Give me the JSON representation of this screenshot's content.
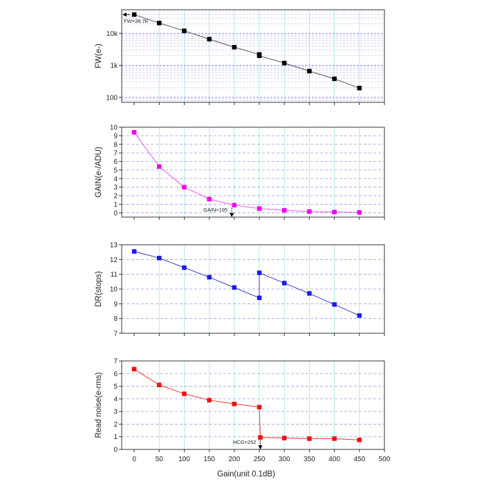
{
  "x_axis": {
    "label": "Gain(unit 0.1dB)",
    "ticks": [
      0,
      50,
      100,
      150,
      200,
      250,
      300,
      350,
      400,
      450,
      500
    ],
    "range": [
      -25,
      500
    ]
  },
  "chart_data": [
    {
      "type": "scatter",
      "scale": "log",
      "ylabel": "FW(e-)",
      "ylim": [
        70,
        55000
      ],
      "yticks": [
        {
          "v": 100,
          "t": "100"
        },
        {
          "v": 1000,
          "t": "1k"
        },
        {
          "v": 10000,
          "t": "10k"
        }
      ],
      "color": "#000000",
      "line_color": "#555555",
      "x": [
        0,
        50,
        100,
        150,
        200,
        250,
        250,
        300,
        350,
        400,
        450
      ],
      "values": [
        38700,
        21000,
        12000,
        6600,
        3700,
        2200,
        2000,
        1180,
        660,
        380,
        195
      ],
      "annotation": {
        "text": "FW=38.7K",
        "x": 0,
        "y": 38700
      }
    },
    {
      "type": "scatter",
      "scale": "linear",
      "ylabel": "GAIN(e-/ADU)",
      "ylim": [
        -0.5,
        10
      ],
      "yticks": [
        {
          "v": 0,
          "t": "0"
        },
        {
          "v": 1,
          "t": "1"
        },
        {
          "v": 2,
          "t": "2"
        },
        {
          "v": 3,
          "t": "3"
        },
        {
          "v": 4,
          "t": "4"
        },
        {
          "v": 5,
          "t": "5"
        },
        {
          "v": 6,
          "t": "6"
        },
        {
          "v": 7,
          "t": "7"
        },
        {
          "v": 8,
          "t": "8"
        },
        {
          "v": 9,
          "t": "9"
        },
        {
          "v": 10,
          "t": "10"
        }
      ],
      "color": "#ee00ee",
      "line_color": "#ee55ee",
      "x": [
        0,
        50,
        100,
        150,
        200,
        250,
        300,
        350,
        400,
        450
      ],
      "values": [
        9.4,
        5.4,
        3.0,
        1.6,
        0.9,
        0.5,
        0.3,
        0.15,
        0.1,
        0.05
      ],
      "annotation": {
        "text": "GAIN=195",
        "x": 195,
        "y": 0.9
      }
    },
    {
      "type": "line",
      "scale": "linear",
      "ylabel": "DR(stops)",
      "ylim": [
        7,
        13
      ],
      "yticks": [
        {
          "v": 7,
          "t": "7"
        },
        {
          "v": 8,
          "t": "8"
        },
        {
          "v": 9,
          "t": "9"
        },
        {
          "v": 10,
          "t": "10"
        },
        {
          "v": 11,
          "t": "11"
        },
        {
          "v": 12,
          "t": "12"
        },
        {
          "v": 13,
          "t": "13"
        }
      ],
      "color": "#1a1aee",
      "line_color": "#3333cc",
      "x": [
        0,
        50,
        100,
        150,
        200,
        250,
        250,
        300,
        350,
        400,
        450
      ],
      "values": [
        12.55,
        12.1,
        11.45,
        10.8,
        10.1,
        9.4,
        11.1,
        10.4,
        9.7,
        8.95,
        8.2
      ]
    },
    {
      "type": "line",
      "scale": "linear",
      "ylabel": "Read noise(e-rms)",
      "ylim": [
        0,
        7
      ],
      "yticks": [
        {
          "v": 0,
          "t": "0"
        },
        {
          "v": 1,
          "t": "1"
        },
        {
          "v": 2,
          "t": "2"
        },
        {
          "v": 3,
          "t": "3"
        },
        {
          "v": 4,
          "t": "4"
        },
        {
          "v": 5,
          "t": "5"
        },
        {
          "v": 6,
          "t": "6"
        },
        {
          "v": 7,
          "t": "7"
        }
      ],
      "color": "#ee1111",
      "line_color": "#ee3333",
      "x": [
        0,
        50,
        100,
        150,
        200,
        250,
        252,
        300,
        350,
        400,
        450
      ],
      "values": [
        6.35,
        5.1,
        4.4,
        3.9,
        3.6,
        3.35,
        0.95,
        0.9,
        0.85,
        0.85,
        0.75
      ],
      "annotation": {
        "text": "HCG=252",
        "x": 252,
        "y": 0.95
      }
    }
  ]
}
